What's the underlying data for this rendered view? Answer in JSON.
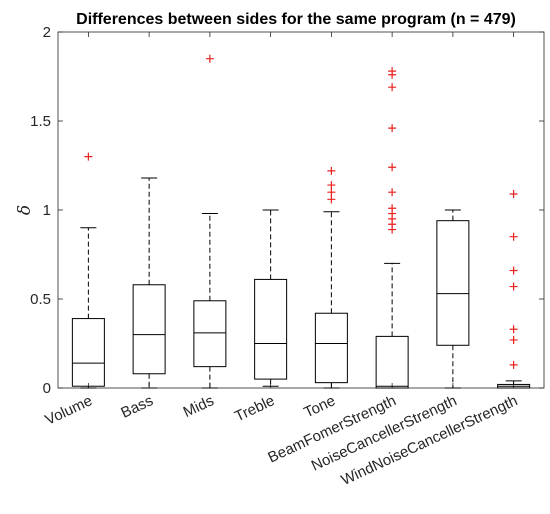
{
  "chart_data": {
    "type": "box",
    "title": "Differences between sides for the same program (n = 479)",
    "xlabel": "",
    "ylabel": "δ",
    "ylim": [
      0,
      2
    ],
    "yticks": [
      0,
      0.5,
      1,
      1.5,
      2
    ],
    "ytick_labels": [
      "0",
      "0.5",
      "1",
      "1.5",
      "2"
    ],
    "grid": false,
    "categories": [
      "Volume",
      "Bass",
      "Mids",
      "Treble",
      "Tone",
      "BeamFomerStrength",
      "NoiseCancellerStrength",
      "WindNoiseCancellerStrength"
    ],
    "boxes": [
      {
        "whisker_low": 0.0,
        "q1": 0.01,
        "median": 0.14,
        "q3": 0.39,
        "whisker_high": 0.9,
        "outliers": [
          1.3
        ]
      },
      {
        "whisker_low": 0.0,
        "q1": 0.08,
        "median": 0.3,
        "q3": 0.58,
        "whisker_high": 1.18,
        "outliers": []
      },
      {
        "whisker_low": 0.0,
        "q1": 0.12,
        "median": 0.31,
        "q3": 0.49,
        "whisker_high": 0.98,
        "outliers": [
          1.85
        ]
      },
      {
        "whisker_low": 0.01,
        "q1": 0.05,
        "median": 0.25,
        "q3": 0.61,
        "whisker_high": 1.0,
        "outliers": []
      },
      {
        "whisker_low": 0.0,
        "q1": 0.03,
        "median": 0.25,
        "q3": 0.42,
        "whisker_high": 0.99,
        "outliers": [
          1.06,
          1.1,
          1.14,
          1.22
        ]
      },
      {
        "whisker_low": 0.0,
        "q1": 0.0,
        "median": 0.01,
        "q3": 0.29,
        "whisker_high": 0.7,
        "outliers": [
          0.89,
          0.92,
          0.95,
          0.98,
          1.01,
          1.1,
          1.24,
          1.46,
          1.69,
          1.76,
          1.78
        ]
      },
      {
        "whisker_low": 0.0,
        "q1": 0.24,
        "median": 0.53,
        "q3": 0.94,
        "whisker_high": 1.0,
        "outliers": []
      },
      {
        "whisker_low": 0.0,
        "q1": 0.0,
        "median": 0.01,
        "q3": 0.02,
        "whisker_high": 0.04,
        "outliers": [
          0.13,
          0.27,
          0.33,
          0.57,
          0.66,
          0.85,
          1.09
        ]
      }
    ],
    "colors": {
      "box": "#000000",
      "median": "#000000",
      "whisker": "#000000",
      "outlier": "#e8211e",
      "axis": "#262626"
    }
  }
}
